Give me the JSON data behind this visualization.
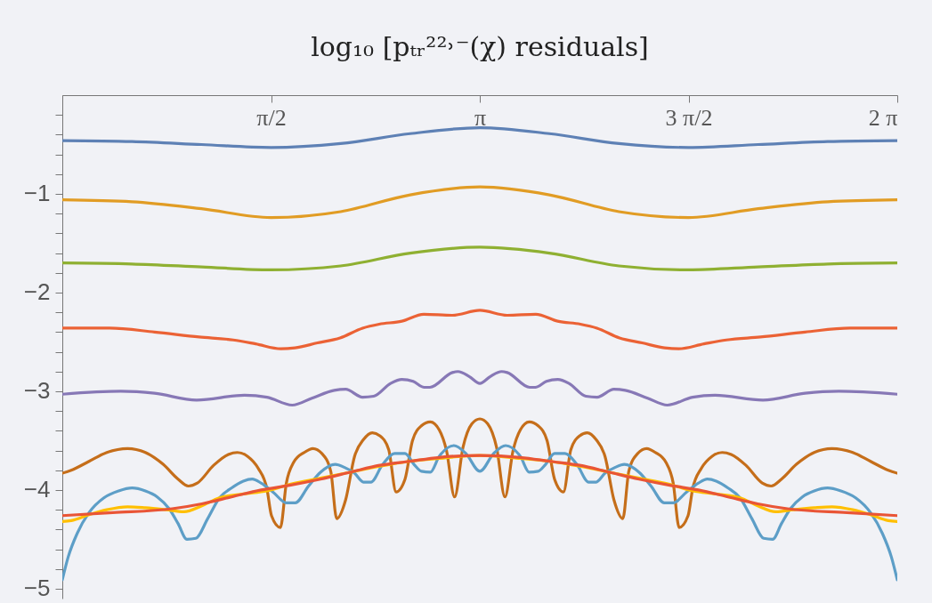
{
  "chart_data": {
    "type": "line",
    "title": "log₁₀ [pₜᵣ²²˒⁻(χ)  residuals]",
    "xlim": [
      0,
      6.2832
    ],
    "ylim": [
      -5.1,
      0
    ],
    "xticks": [
      {
        "value": 0,
        "label": null
      },
      {
        "value": 1.5708,
        "label": "π/2"
      },
      {
        "value": 3.1416,
        "label": "π"
      },
      {
        "value": 4.7124,
        "label": "3 π/2"
      },
      {
        "value": 6.2832,
        "label": "2 π"
      }
    ],
    "yticks": [
      {
        "value": -0.2,
        "label": null
      },
      {
        "value": -0.4,
        "label": null
      },
      {
        "value": -0.6,
        "label": null
      },
      {
        "value": -0.8,
        "label": null
      },
      -1,
      {
        "value": -1.2,
        "label": null
      },
      {
        "value": -1.4,
        "label": null
      },
      {
        "value": -1.6,
        "label": null
      },
      {
        "value": -1.8,
        "label": null
      },
      -2,
      {
        "value": -2.2,
        "label": null
      },
      {
        "value": -2.4,
        "label": null
      },
      {
        "value": -2.6,
        "label": null
      },
      {
        "value": -2.8,
        "label": null
      },
      -3,
      {
        "value": -3.2,
        "label": null
      },
      {
        "value": -3.4,
        "label": null
      },
      {
        "value": -3.6,
        "label": null
      },
      {
        "value": -3.8,
        "label": null
      },
      -4,
      {
        "value": -4.2,
        "label": null
      },
      {
        "value": -4.4,
        "label": null
      },
      {
        "value": -4.6,
        "label": null
      },
      {
        "value": -4.8,
        "label": null
      },
      -5
    ],
    "grid": false,
    "series": [
      {
        "color": "#5e81b5",
        "x": [
          0,
          0.524,
          1.047,
          1.571,
          2.094,
          2.618,
          3.142,
          3.665,
          4.189,
          4.712,
          5.236,
          5.76,
          6.283
        ],
        "values": [
          -0.46,
          -0.47,
          -0.5,
          -0.53,
          -0.49,
          -0.39,
          -0.33,
          -0.39,
          -0.49,
          -0.53,
          -0.5,
          -0.47,
          -0.46
        ]
      },
      {
        "color": "#e19c24",
        "x": [
          0,
          0.524,
          1.047,
          1.571,
          2.094,
          2.618,
          3.142,
          3.665,
          4.189,
          4.712,
          5.236,
          5.76,
          6.283
        ],
        "values": [
          -1.06,
          -1.08,
          -1.15,
          -1.24,
          -1.18,
          -1.01,
          -0.93,
          -1.01,
          -1.18,
          -1.24,
          -1.15,
          -1.08,
          -1.06
        ]
      },
      {
        "color": "#8fb032",
        "x": [
          0,
          0.524,
          1.047,
          1.571,
          2.094,
          2.618,
          3.142,
          3.665,
          4.189,
          4.712,
          5.236,
          5.76,
          6.283
        ],
        "values": [
          -1.7,
          -1.71,
          -1.74,
          -1.77,
          -1.73,
          -1.6,
          -1.54,
          -1.6,
          -1.73,
          -1.77,
          -1.74,
          -1.71,
          -1.7
        ]
      },
      {
        "color": "#eb6235",
        "x": [
          0,
          0.356,
          0.694,
          1.03,
          1.286,
          1.455,
          1.645,
          1.751,
          1.92,
          2.09,
          2.26,
          2.385,
          2.555,
          2.72,
          2.935,
          3.142,
          3.348,
          3.563,
          3.728,
          3.898,
          4.023,
          4.193,
          4.363,
          4.532,
          4.638,
          4.828,
          4.997,
          5.253,
          5.589,
          5.927,
          6.283
        ],
        "values": [
          -2.36,
          -2.36,
          -2.4,
          -2.45,
          -2.48,
          -2.52,
          -2.57,
          -2.56,
          -2.51,
          -2.46,
          -2.36,
          -2.32,
          -2.29,
          -2.22,
          -2.23,
          -2.18,
          -2.23,
          -2.22,
          -2.29,
          -2.32,
          -2.36,
          -2.46,
          -2.51,
          -2.56,
          -2.57,
          -2.52,
          -2.48,
          -2.45,
          -2.4,
          -2.36,
          -2.36
        ]
      },
      {
        "color": "#8778b6",
        "x": [
          0,
          0.44,
          0.694,
          1.011,
          1.371,
          1.54,
          1.73,
          1.878,
          2.047,
          2.132,
          2.259,
          2.343,
          2.47,
          2.555,
          2.64,
          2.724,
          2.766,
          2.935,
          2.977,
          3.062,
          3.142,
          3.221,
          3.306,
          3.348,
          3.517,
          3.559,
          3.643,
          3.728,
          3.813,
          3.94,
          4.024,
          4.151,
          4.236,
          4.405,
          4.553,
          4.743,
          4.912,
          5.272,
          5.589,
          5.843,
          6.283
        ],
        "values": [
          -3.03,
          -3.0,
          -3.02,
          -3.09,
          -3.04,
          -3.06,
          -3.14,
          -3.07,
          -2.99,
          -2.98,
          -3.06,
          -3.05,
          -2.92,
          -2.88,
          -2.9,
          -2.96,
          -2.96,
          -2.81,
          -2.8,
          -2.85,
          -2.92,
          -2.85,
          -2.8,
          -2.81,
          -2.96,
          -2.96,
          -2.9,
          -2.88,
          -2.92,
          -3.05,
          -3.06,
          -2.98,
          -2.99,
          -3.07,
          -3.14,
          -3.06,
          -3.04,
          -3.09,
          -3.02,
          -3.0,
          -3.03
        ]
      },
      {
        "color": "#c56e1a",
        "x": [
          0,
          0.067,
          0.201,
          0.335,
          0.491,
          0.625,
          0.759,
          0.871,
          0.949,
          1.016,
          1.139,
          1.25,
          1.317,
          1.395,
          1.474,
          1.54,
          1.574,
          1.641,
          1.686,
          1.741,
          1.82,
          1.886,
          1.953,
          2.02,
          2.065,
          2.132,
          2.199,
          2.266,
          2.333,
          2.389,
          2.456,
          2.512,
          2.579,
          2.635,
          2.702,
          2.769,
          2.836,
          2.891,
          2.952,
          3.015,
          3.082,
          3.142,
          3.201,
          3.268,
          3.331,
          3.392,
          3.447,
          3.514,
          3.581,
          3.648,
          3.704,
          3.771,
          3.827,
          3.894,
          3.95,
          4.017,
          4.084,
          4.151,
          4.218,
          4.263,
          4.33,
          4.397,
          4.463,
          4.542,
          4.597,
          4.642,
          4.709,
          4.743,
          4.809,
          4.888,
          4.966,
          5.033,
          5.144,
          5.267,
          5.334,
          5.412,
          5.524,
          5.658,
          5.792,
          5.948,
          6.082,
          6.216,
          6.283
        ],
        "values": [
          -3.83,
          -3.8,
          -3.71,
          -3.62,
          -3.58,
          -3.62,
          -3.74,
          -3.89,
          -3.96,
          -3.93,
          -3.75,
          -3.64,
          -3.62,
          -3.66,
          -3.78,
          -3.99,
          -4.26,
          -4.38,
          -3.93,
          -3.72,
          -3.62,
          -3.58,
          -3.63,
          -3.81,
          -4.29,
          -4.1,
          -3.66,
          -3.49,
          -3.42,
          -3.45,
          -3.59,
          -4.02,
          -3.89,
          -3.5,
          -3.35,
          -3.31,
          -3.39,
          -3.6,
          -4.07,
          -3.57,
          -3.33,
          -3.28,
          -3.33,
          -3.57,
          -4.07,
          -3.6,
          -3.39,
          -3.31,
          -3.35,
          -3.5,
          -3.89,
          -4.02,
          -3.59,
          -3.45,
          -3.42,
          -3.49,
          -3.66,
          -4.1,
          -4.29,
          -3.81,
          -3.63,
          -3.58,
          -3.62,
          -3.72,
          -3.93,
          -4.38,
          -4.26,
          -3.99,
          -3.78,
          -3.66,
          -3.62,
          -3.64,
          -3.75,
          -3.93,
          -3.96,
          -3.89,
          -3.74,
          -3.62,
          -3.58,
          -3.62,
          -3.71,
          -3.8,
          -3.83
        ]
      },
      {
        "color": "#5d9ec7",
        "x": [
          0,
          0.044,
          0.112,
          0.201,
          0.313,
          0.424,
          0.525,
          0.625,
          0.714,
          0.804,
          0.871,
          0.938,
          1.005,
          1.094,
          1.183,
          1.273,
          1.362,
          1.429,
          1.496,
          1.585,
          1.686,
          1.753,
          1.853,
          1.943,
          2.054,
          2.121,
          2.199,
          2.266,
          2.322,
          2.411,
          2.501,
          2.579,
          2.646,
          2.702,
          2.769,
          2.836,
          2.947,
          3.037,
          3.142,
          3.246,
          3.336,
          3.447,
          3.514,
          3.581,
          3.637,
          3.704,
          3.782,
          3.872,
          3.961,
          4.017,
          4.084,
          4.162,
          4.229,
          4.34,
          4.43,
          4.53,
          4.597,
          4.698,
          4.787,
          4.854,
          4.921,
          5.01,
          5.1,
          5.189,
          5.278,
          5.345,
          5.412,
          5.479,
          5.569,
          5.658,
          5.758,
          5.859,
          5.97,
          6.082,
          6.171,
          6.239,
          6.283
        ],
        "values": [
          -4.91,
          -4.68,
          -4.44,
          -4.23,
          -4.08,
          -4.01,
          -3.98,
          -4.01,
          -4.07,
          -4.19,
          -4.34,
          -4.5,
          -4.49,
          -4.29,
          -4.08,
          -3.98,
          -3.91,
          -3.89,
          -3.93,
          -4.02,
          -4.13,
          -4.13,
          -3.96,
          -3.82,
          -3.74,
          -3.77,
          -3.83,
          -3.92,
          -3.92,
          -3.74,
          -3.63,
          -3.63,
          -3.74,
          -3.81,
          -3.82,
          -3.66,
          -3.55,
          -3.63,
          -3.81,
          -3.63,
          -3.55,
          -3.66,
          -3.82,
          -3.81,
          -3.74,
          -3.63,
          -3.63,
          -3.74,
          -3.92,
          -3.92,
          -3.83,
          -3.77,
          -3.74,
          -3.82,
          -3.96,
          -4.13,
          -4.13,
          -4.02,
          -3.93,
          -3.89,
          -3.91,
          -3.98,
          -4.08,
          -4.29,
          -4.49,
          -4.5,
          -4.34,
          -4.19,
          -4.07,
          -4.01,
          -3.98,
          -4.01,
          -4.08,
          -4.23,
          -4.44,
          -4.68,
          -4.91
        ]
      },
      {
        "color": "#ffbf00",
        "x": [
          0,
          0.067,
          0.201,
          0.335,
          0.491,
          0.625,
          0.781,
          0.915,
          1.05,
          1.183,
          1.362,
          1.54,
          1.72,
          1.943,
          2.166,
          2.389,
          2.612,
          2.836,
          3.142,
          3.447,
          3.671,
          3.894,
          4.117,
          4.34,
          4.563,
          4.743,
          4.921,
          5.1,
          5.233,
          5.368,
          5.502,
          5.658,
          5.792,
          5.948,
          6.082,
          6.216,
          6.283
        ],
        "values": [
          -4.32,
          -4.31,
          -4.25,
          -4.2,
          -4.17,
          -4.18,
          -4.2,
          -4.22,
          -4.16,
          -4.08,
          -4.04,
          -4.01,
          -3.94,
          -3.88,
          -3.82,
          -3.76,
          -3.71,
          -3.68,
          -3.65,
          -3.68,
          -3.71,
          -3.76,
          -3.82,
          -3.88,
          -3.94,
          -4.01,
          -4.04,
          -4.08,
          -4.16,
          -4.22,
          -4.2,
          -4.18,
          -4.17,
          -4.2,
          -4.25,
          -4.31,
          -4.32
        ]
      },
      {
        "color": "#e95536",
        "x": [
          0,
          0.379,
          0.826,
          1.05,
          1.273,
          1.496,
          1.72,
          1.943,
          2.166,
          2.389,
          2.612,
          2.836,
          3.142,
          3.447,
          3.671,
          3.894,
          4.117,
          4.34,
          4.563,
          4.787,
          5.01,
          5.233,
          5.457,
          5.904,
          6.283
        ],
        "values": [
          -4.26,
          -4.23,
          -4.19,
          -4.14,
          -4.07,
          -4.0,
          -3.95,
          -3.89,
          -3.82,
          -3.75,
          -3.71,
          -3.67,
          -3.65,
          -3.67,
          -3.71,
          -3.75,
          -3.82,
          -3.89,
          -3.95,
          -4.0,
          -4.07,
          -4.14,
          -4.19,
          -4.23,
          -4.26
        ]
      }
    ]
  }
}
